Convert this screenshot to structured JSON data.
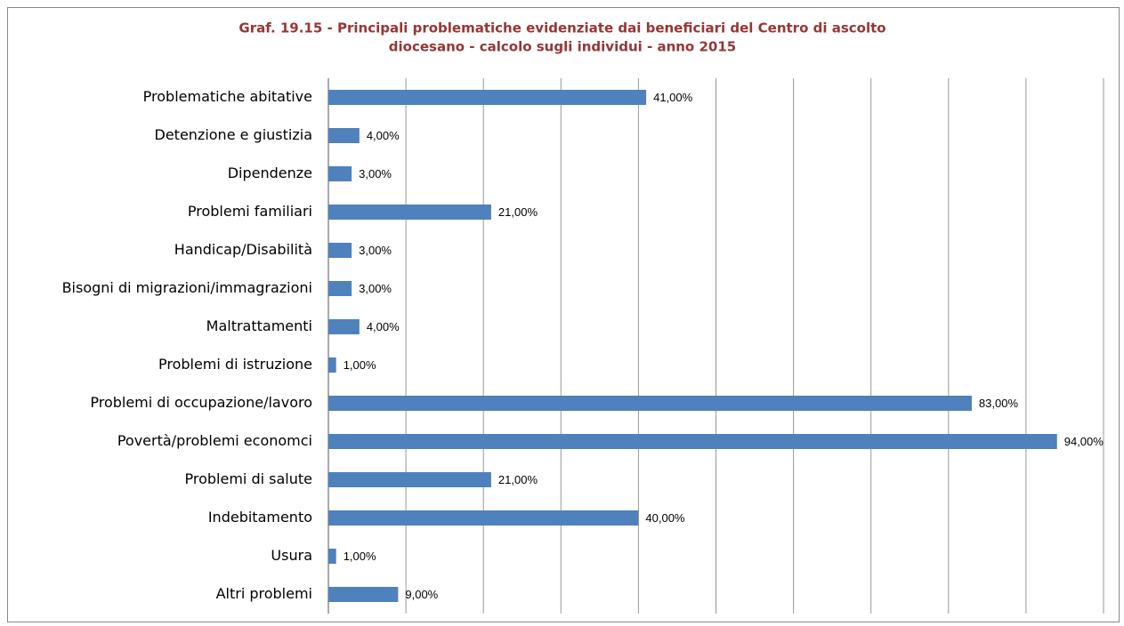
{
  "chart_data": {
    "type": "bar",
    "orientation": "horizontal",
    "title": [
      "Graf. 19.15 - Principali problematiche evidenziate dai beneficiari del Centro di ascolto",
      "diocesano - calcolo sugli individui - anno 2015"
    ],
    "categories": [
      "Problematiche abitative",
      "Detenzione e giustizia",
      "Dipendenze",
      "Problemi familiari",
      "Handicap/Disabilità",
      "Bisogni di migrazioni/immagrazioni",
      "Maltrattamenti",
      "Problemi di istruzione",
      "Problemi di occupazione/lavoro",
      "Povertà/problemi economci",
      "Problemi di salute",
      "Indebitamento",
      "Usura",
      "Altri problemi"
    ],
    "values": [
      41,
      4,
      3,
      21,
      3,
      3,
      4,
      1,
      83,
      94,
      21,
      40,
      1,
      9
    ],
    "value_labels": [
      "41,00%",
      "4,00%",
      "3,00%",
      "21,00%",
      "3,00%",
      "3,00%",
      "4,00%",
      "1,00%",
      "83,00%",
      "94,00%",
      "21,00%",
      "40,00%",
      "1,00%",
      "9,00%"
    ],
    "color": "#4f81bd",
    "xlim": [
      0,
      100
    ],
    "xticks": [
      0,
      10,
      20,
      30,
      40,
      50,
      60,
      70,
      80,
      90,
      100
    ],
    "grid": true
  }
}
